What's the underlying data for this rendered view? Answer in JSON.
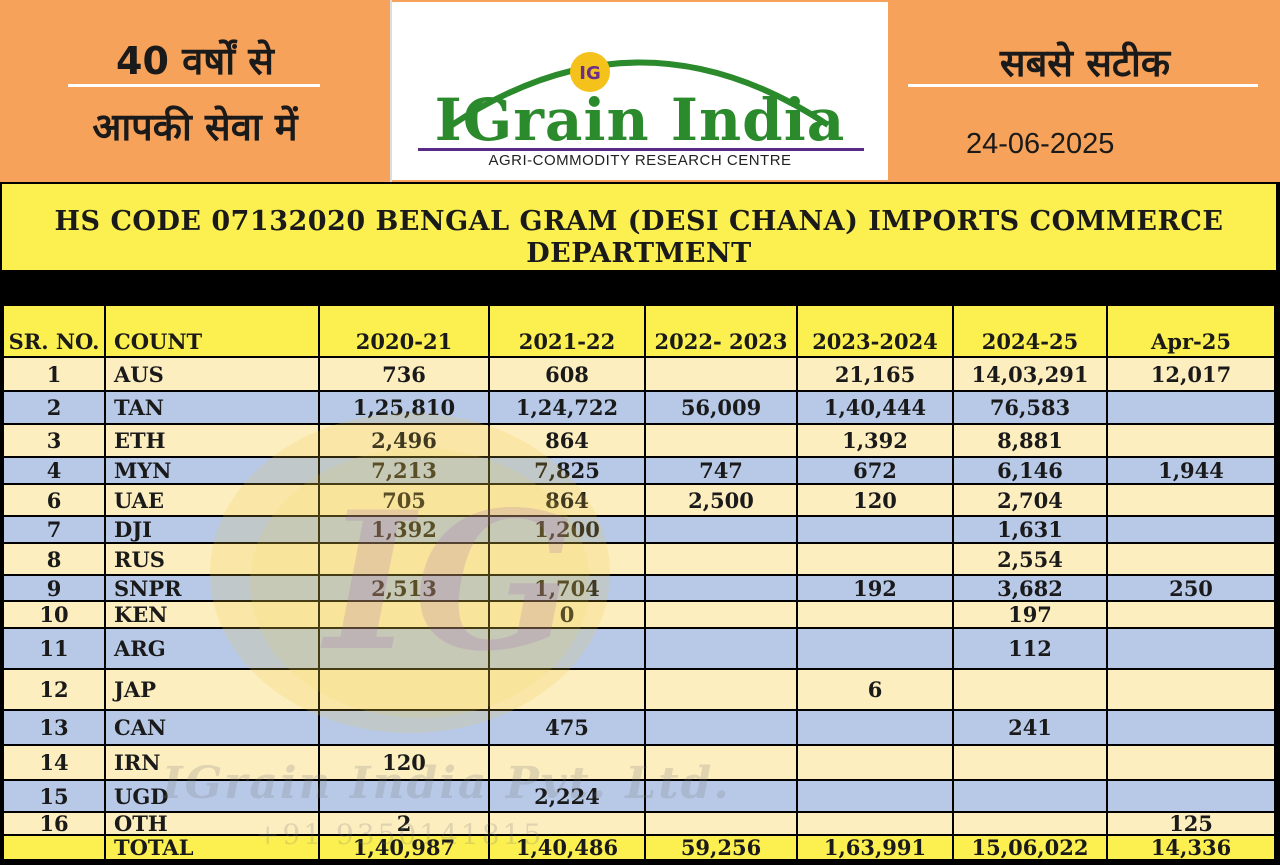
{
  "header": {
    "left_line1": "40 वर्षों से",
    "left_line2": "आपकी सेवा में",
    "logo_name": "IGrain India",
    "logo_subtitle": "AGRI-COMMODITY RESEARCH CENTRE",
    "logo_badge": "IG",
    "right_title": "सबसे सटीक",
    "date": "24-06-2025"
  },
  "title": {
    "line1": "HS CODE 07132020 BENGAL GRAM (DESI CHANA) IMPORTS COMMERCE",
    "line2": "DEPARTMENT"
  },
  "table": {
    "headers": [
      "SR. NO.",
      "COUNT",
      "2020-21",
      "2021-22",
      "2022- 2023",
      "2023-2024",
      "2024-25",
      "Apr-25"
    ],
    "rows": [
      [
        "1",
        "AUS",
        "736",
        "608",
        "",
        "21,165",
        "14,03,291",
        "12,017"
      ],
      [
        "2",
        "TAN",
        "1,25,810",
        "1,24,722",
        "56,009",
        "1,40,444",
        "76,583",
        ""
      ],
      [
        "3",
        "ETH",
        "2,496",
        "864",
        "",
        "1,392",
        "8,881",
        ""
      ],
      [
        "4",
        "MYN",
        "7,213",
        "7,825",
        "747",
        "672",
        "6,146",
        "1,944"
      ],
      [
        "6",
        "UAE",
        "705",
        "864",
        "2,500",
        "120",
        "2,704",
        ""
      ],
      [
        "7",
        "DJI",
        "1,392",
        "1,200",
        "",
        "",
        "1,631",
        ""
      ],
      [
        "8",
        "RUS",
        "",
        "",
        "",
        "",
        "2,554",
        ""
      ],
      [
        "9",
        "SNPR",
        "2,513",
        "1,704",
        "",
        "192",
        "3,682",
        "250"
      ],
      [
        "10",
        "KEN",
        "",
        "0",
        "",
        "",
        "197",
        ""
      ],
      [
        "11",
        "ARG",
        "",
        "",
        "",
        "",
        "112",
        ""
      ],
      [
        "12",
        "JAP",
        "",
        "",
        "",
        "6",
        "",
        ""
      ],
      [
        "13",
        "CAN",
        "",
        "475",
        "",
        "",
        "241",
        ""
      ],
      [
        "14",
        "IRN",
        "120",
        "",
        "",
        "",
        "",
        ""
      ],
      [
        "15",
        "UGD",
        "",
        "2,224",
        "",
        "",
        "",
        ""
      ],
      [
        "16",
        "OTH",
        "2",
        "",
        "",
        "",
        "",
        "125"
      ]
    ],
    "total": [
      "",
      "TOTAL",
      "1,40,987",
      "1,40,486",
      "59,256",
      "1,63,991",
      "15,06,022",
      "14,336"
    ]
  },
  "watermark": {
    "text": "IGrain India Pvt. Ltd.",
    "phone": "+91 9350141815"
  },
  "colors": {
    "header_orange": "#f7a25a",
    "title_yellow": "#fcf050",
    "row_cream": "#fdeec0",
    "row_blue": "#b8c9e8",
    "logo_green": "#2b8a2b"
  }
}
